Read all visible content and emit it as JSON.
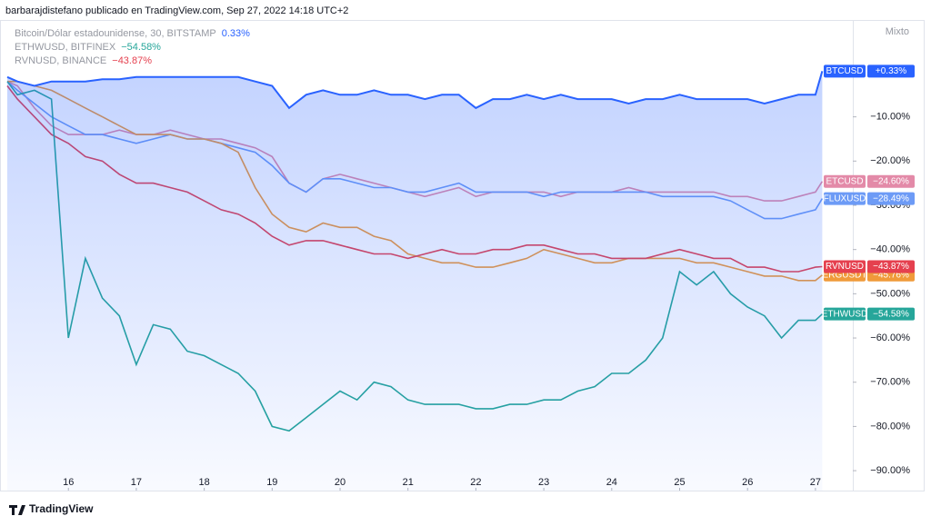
{
  "chart_data": {
    "type": "line",
    "header": "barbarajdistefano publicado en TradingView.com, Sep 27, 2022 14:18 UTC+2",
    "legend": [
      {
        "text": "Bitcoin/Dólar estadounidense, 30, BITSTAMP",
        "value": "0.33%",
        "color": "#2962ff"
      },
      {
        "text": "ETHWUSD, BITFINEX",
        "value": "−54.58%",
        "color": "#26a69a"
      },
      {
        "text": "RVNUSD, BINANCE",
        "value": "−43.87%",
        "color": "#e5404f"
      }
    ],
    "scale_mode": "Mixto",
    "brand": "TradingView",
    "x": [
      15.1,
      15.25,
      15.5,
      15.75,
      16,
      16.25,
      16.5,
      16.75,
      17,
      17.25,
      17.5,
      17.75,
      18,
      18.25,
      18.5,
      18.75,
      19,
      19.25,
      19.5,
      19.75,
      20,
      20.25,
      20.5,
      20.75,
      21,
      21.25,
      21.5,
      21.75,
      22,
      22.25,
      22.5,
      22.75,
      23,
      23.25,
      23.5,
      23.75,
      24,
      24.25,
      24.5,
      24.75,
      25,
      25.25,
      25.5,
      25.75,
      26,
      26.25,
      26.5,
      26.75,
      27,
      27.1
    ],
    "xlim": [
      15.1,
      27.55
    ],
    "xticks": [
      16,
      17,
      18,
      19,
      20,
      21,
      22,
      23,
      24,
      25,
      26,
      27
    ],
    "ylim": [
      -94.5,
      11.9
    ],
    "yticks": [
      {
        "value": -10,
        "label": "−10.00%"
      },
      {
        "value": -20,
        "label": "−20.00%"
      },
      {
        "value": -30,
        "label": "−30.00%"
      },
      {
        "value": -40,
        "label": "−40.00%"
      },
      {
        "value": -50,
        "label": "−50.00%"
      },
      {
        "value": -60,
        "label": "−60.00%"
      },
      {
        "value": -70,
        "label": "−70.00%"
      },
      {
        "value": -80,
        "label": "−80.00%"
      },
      {
        "value": -90,
        "label": "−90.00%"
      }
    ],
    "series": [
      {
        "name": "ETCUSD",
        "color": "#e38aa8",
        "value_labels": "−24.60%",
        "values": [
          -2,
          -3,
          -8,
          -12,
          -14,
          -14,
          -14,
          -13,
          -14,
          -14,
          -13,
          -14,
          -15,
          -15,
          -16,
          -17,
          -19,
          -25,
          -27,
          -24,
          -23,
          -24,
          -25,
          -26,
          -27,
          -28,
          -27,
          -26,
          -28,
          -27,
          -27,
          -27,
          -27,
          -28,
          -27,
          -27,
          -27,
          -26,
          -27,
          -27,
          -27,
          -27,
          -27,
          -28,
          -28,
          -29,
          -29,
          -28,
          -27,
          -24.6
        ]
      },
      {
        "name": "FLUXUSD",
        "color": "#6d9bf6",
        "value_labels": "−28.49%",
        "values": [
          -2,
          -4,
          -7,
          -10,
          -12,
          -14,
          -14,
          -15,
          -16,
          -15,
          -14,
          -15,
          -15,
          -16,
          -17,
          -18,
          -21,
          -25,
          -27,
          -24,
          -24,
          -25,
          -26,
          -26,
          -27,
          -27,
          -26,
          -25,
          -27,
          -27,
          -27,
          -27,
          -28,
          -27,
          -27,
          -27,
          -27,
          -27,
          -27,
          -28,
          -28,
          -28,
          -28,
          -29,
          -31,
          -33,
          -33,
          -32,
          -31,
          -28.49
        ]
      },
      {
        "name": "ERGUSDT",
        "color": "#f09a3a",
        "value_labels": "−45.76%",
        "values": [
          -2,
          -2,
          -3,
          -4,
          -6,
          -8,
          -10,
          -12,
          -14,
          -14,
          -14,
          -15,
          -15,
          -16,
          -18,
          -26,
          -32,
          -35,
          -36,
          -34,
          -35,
          -35,
          -37,
          -38,
          -41,
          -42,
          -43,
          -43,
          -44,
          -44,
          -43,
          -42,
          -40,
          -41,
          -42,
          -43,
          -43,
          -42,
          -42,
          -42,
          -42,
          -43,
          -43,
          -44,
          -45,
          -46,
          -46,
          -47,
          -47,
          -45.76
        ]
      },
      {
        "name": "RVNUSD",
        "color": "#e5404f",
        "value_labels": "−43.87%",
        "values": [
          -3,
          -6,
          -10,
          -14,
          -16,
          -19,
          -20,
          -23,
          -25,
          -25,
          -26,
          -27,
          -29,
          -31,
          -32,
          -34,
          -37,
          -39,
          -38,
          -38,
          -39,
          -40,
          -41,
          -41,
          -42,
          -41,
          -40,
          -41,
          -41,
          -40,
          -40,
          -39,
          -39,
          -40,
          -41,
          -41,
          -42,
          -42,
          -42,
          -41,
          -40,
          -41,
          -42,
          -42,
          -44,
          -44,
          -45,
          -45,
          -44,
          -43.87
        ]
      },
      {
        "name": "ETHWUSD",
        "color": "#26a69a",
        "value_labels": "−54.58%",
        "values": [
          -2,
          -5,
          -4,
          -6,
          -60,
          -42,
          -51,
          -55,
          -66,
          -57,
          -58,
          -63,
          -64,
          -66,
          -68,
          -72,
          -80,
          -81,
          -78,
          -75,
          -72,
          -74,
          -70,
          -71,
          -74,
          -75,
          -75,
          -75,
          -76,
          -76,
          -75,
          -75,
          -74,
          -74,
          -72,
          -71,
          -68,
          -68,
          -65,
          -60,
          -45,
          -48,
          -45,
          -50,
          -53,
          -55,
          -60,
          -56,
          -56,
          -54.58
        ]
      },
      {
        "name": "BTCUSD",
        "color": "#2962ff",
        "value_labels": "+0.33%",
        "area": true,
        "values": [
          -1,
          -2,
          -3,
          -2,
          -2,
          -2,
          -1.5,
          -1.5,
          -1,
          -1,
          -1,
          -1,
          -1,
          -1,
          -1,
          -2,
          -3,
          -8,
          -5,
          -4,
          -5,
          -5,
          -4,
          -5,
          -5,
          -6,
          -5,
          -5,
          -8,
          -6,
          -6,
          -5,
          -6,
          -5,
          -6,
          -6,
          -6,
          -7,
          -6,
          -6,
          -5,
          -6,
          -6,
          -6,
          -6,
          -7,
          -6,
          -5,
          -5,
          0.33
        ]
      }
    ]
  }
}
